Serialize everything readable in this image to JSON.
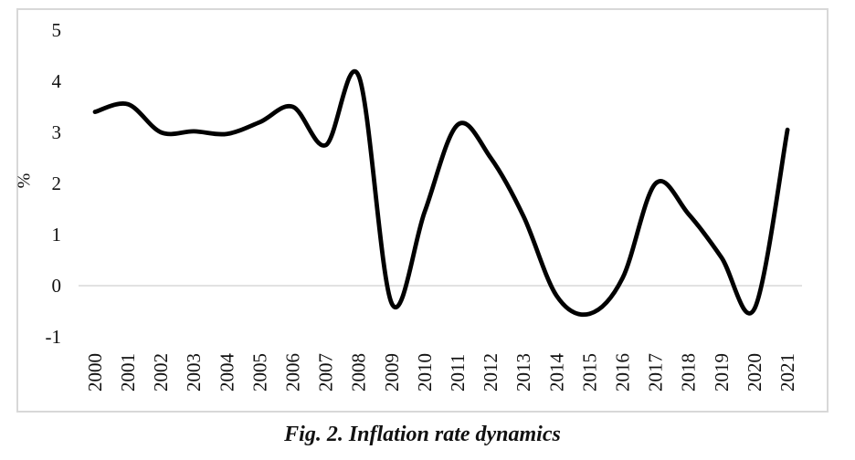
{
  "chart_data": {
    "type": "line",
    "title": "",
    "categories": [
      "2000",
      "2001",
      "2002",
      "2003",
      "2004",
      "2005",
      "2006",
      "2007",
      "2008",
      "2009",
      "2010",
      "2011",
      "2012",
      "2013",
      "2014",
      "2015",
      "2016",
      "2017",
      "2018",
      "2019",
      "2020",
      "2021"
    ],
    "values": [
      3.4,
      3.55,
      3.0,
      3.02,
      2.97,
      3.2,
      3.5,
      2.75,
      4.1,
      -0.35,
      1.45,
      3.15,
      2.5,
      1.35,
      -0.2,
      -0.55,
      0.15,
      2.0,
      1.4,
      0.55,
      -0.45,
      3.05
    ],
    "xlabel": "",
    "ylabel": "%",
    "y_ticks": [
      5,
      4,
      3,
      2,
      1,
      0,
      -1
    ],
    "ylim": [
      -1,
      5
    ],
    "gridlines": "horizontal-at-zero-only",
    "legend_position": "none",
    "smoothed_line": true,
    "line_color": "#000000",
    "grid_color": "#d9d9d9",
    "frame_color": "#d8d8d8",
    "text_color": "#111111"
  },
  "caption": {
    "text": "Fig. 2. Inflation rate dynamics"
  }
}
